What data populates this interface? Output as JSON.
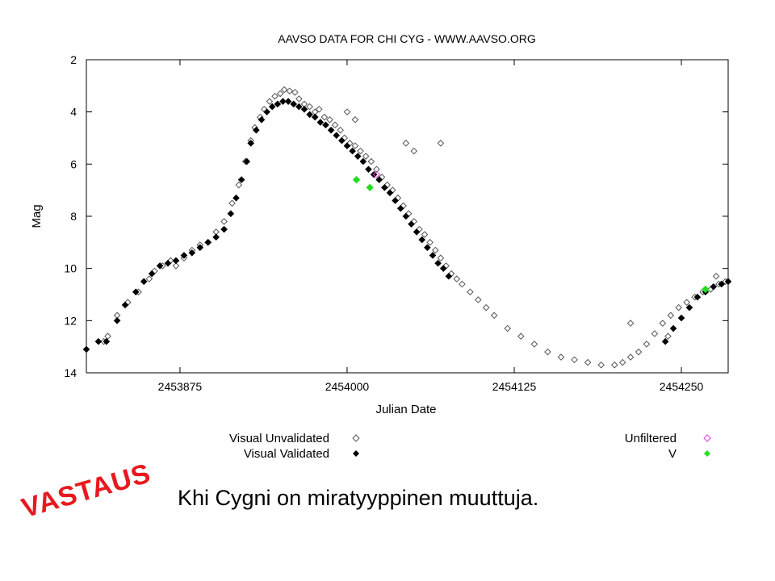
{
  "chart_data": {
    "type": "scatter",
    "title": "AAVSO DATA FOR CHI CYG - WWW.AAVSO.ORG",
    "xlabel": "Julian Date",
    "ylabel": "Mag",
    "xlim": [
      2453805,
      2454285
    ],
    "ylim": [
      14,
      2
    ],
    "y_inverted": true,
    "x_ticks": [
      2453875,
      2454000,
      2454125,
      2454250
    ],
    "y_ticks": [
      2,
      4,
      6,
      8,
      10,
      12,
      14
    ],
    "grid": false,
    "legend": "below",
    "series": [
      {
        "name": "Visual Unvalidated",
        "marker": "open-diamond",
        "color": "#555555",
        "points": [
          [
            2453818,
            12.8
          ],
          [
            2453821,
            12.6
          ],
          [
            2453828,
            11.8
          ],
          [
            2453836,
            11.3
          ],
          [
            2453844,
            10.9
          ],
          [
            2453852,
            10.4
          ],
          [
            2453856,
            10.1
          ],
          [
            2453862,
            9.9
          ],
          [
            2453868,
            9.7
          ],
          [
            2453872,
            9.9
          ],
          [
            2453878,
            9.6
          ],
          [
            2453884,
            9.3
          ],
          [
            2453890,
            9.1
          ],
          [
            2453896,
            9.0
          ],
          [
            2453902,
            8.6
          ],
          [
            2453908,
            8.2
          ],
          [
            2453914,
            7.5
          ],
          [
            2453919,
            6.8
          ],
          [
            2453924,
            5.9
          ],
          [
            2453928,
            5.1
          ],
          [
            2453931,
            4.6
          ],
          [
            2453935,
            4.2
          ],
          [
            2453938,
            3.9
          ],
          [
            2453942,
            3.6
          ],
          [
            2453946,
            3.4
          ],
          [
            2453950,
            3.3
          ],
          [
            2453953,
            3.15
          ],
          [
            2453957,
            3.2
          ],
          [
            2453961,
            3.25
          ],
          [
            2453964,
            3.5
          ],
          [
            2453968,
            3.7
          ],
          [
            2453972,
            3.8
          ],
          [
            2453976,
            4.0
          ],
          [
            2453979,
            3.9
          ],
          [
            2453983,
            4.2
          ],
          [
            2453987,
            4.3
          ],
          [
            2453991,
            4.5
          ],
          [
            2453995,
            4.7
          ],
          [
            2453998,
            5.0
          ],
          [
            2454002,
            5.2
          ],
          [
            2454006,
            5.3
          ],
          [
            2454010,
            5.5
          ],
          [
            2454014,
            5.7
          ],
          [
            2454018,
            5.9
          ],
          [
            2454022,
            6.2
          ],
          [
            2454026,
            6.5
          ],
          [
            2454030,
            6.8
          ],
          [
            2454034,
            7.0
          ],
          [
            2454038,
            7.3
          ],
          [
            2454042,
            7.6
          ],
          [
            2454046,
            7.9
          ],
          [
            2454050,
            8.2
          ],
          [
            2454054,
            8.5
          ],
          [
            2454058,
            8.7
          ],
          [
            2454062,
            9.0
          ],
          [
            2454066,
            9.3
          ],
          [
            2454070,
            9.6
          ],
          [
            2454074,
            9.9
          ],
          [
            2454078,
            10.2
          ],
          [
            2454082,
            10.4
          ],
          [
            2454086,
            10.6
          ],
          [
            2454092,
            10.9
          ],
          [
            2454098,
            11.2
          ],
          [
            2454104,
            11.5
          ],
          [
            2454110,
            11.8
          ],
          [
            2454120,
            12.3
          ],
          [
            2454130,
            12.6
          ],
          [
            2454140,
            12.9
          ],
          [
            2454150,
            13.2
          ],
          [
            2454160,
            13.4
          ],
          [
            2454170,
            13.5
          ],
          [
            2454180,
            13.6
          ],
          [
            2454190,
            13.7
          ],
          [
            2454200,
            13.7
          ],
          [
            2454206,
            13.6
          ],
          [
            2454212,
            13.4
          ],
          [
            2454218,
            13.2
          ],
          [
            2454224,
            12.9
          ],
          [
            2454230,
            12.5
          ],
          [
            2454236,
            12.1
          ],
          [
            2454242,
            11.8
          ],
          [
            2454248,
            11.5
          ],
          [
            2454254,
            11.3
          ],
          [
            2454260,
            11.1
          ],
          [
            2454266,
            10.9
          ],
          [
            2454272,
            10.8
          ],
          [
            2454278,
            10.6
          ],
          [
            2454283,
            10.5
          ],
          [
            2454070,
            5.2
          ],
          [
            2454050,
            5.5
          ],
          [
            2454044,
            5.2
          ],
          [
            2454000,
            4.0
          ],
          [
            2454006,
            4.3
          ],
          [
            2454212,
            12.1
          ],
          [
            2454276,
            10.3
          ],
          [
            2454240,
            12.6
          ]
        ]
      },
      {
        "name": "Visual Validated",
        "marker": "filled-diamond",
        "color": "#000000",
        "points": [
          [
            2453805,
            13.1
          ],
          [
            2453814,
            12.8
          ],
          [
            2453820,
            12.8
          ],
          [
            2453828,
            12.0
          ],
          [
            2453834,
            11.4
          ],
          [
            2453842,
            10.9
          ],
          [
            2453848,
            10.5
          ],
          [
            2453854,
            10.2
          ],
          [
            2453860,
            9.9
          ],
          [
            2453866,
            9.8
          ],
          [
            2453872,
            9.7
          ],
          [
            2453878,
            9.5
          ],
          [
            2453884,
            9.4
          ],
          [
            2453890,
            9.2
          ],
          [
            2453896,
            9.0
          ],
          [
            2453902,
            8.8
          ],
          [
            2453908,
            8.5
          ],
          [
            2453913,
            7.9
          ],
          [
            2453917,
            7.3
          ],
          [
            2453921,
            6.6
          ],
          [
            2453925,
            5.9
          ],
          [
            2453928,
            5.2
          ],
          [
            2453932,
            4.7
          ],
          [
            2453936,
            4.3
          ],
          [
            2453940,
            4.0
          ],
          [
            2453944,
            3.8
          ],
          [
            2453948,
            3.7
          ],
          [
            2453952,
            3.6
          ],
          [
            2453956,
            3.6
          ],
          [
            2453960,
            3.7
          ],
          [
            2453964,
            3.8
          ],
          [
            2453968,
            3.9
          ],
          [
            2453972,
            4.1
          ],
          [
            2453976,
            4.2
          ],
          [
            2453980,
            4.4
          ],
          [
            2453984,
            4.5
          ],
          [
            2453988,
            4.7
          ],
          [
            2453992,
            4.9
          ],
          [
            2453996,
            5.1
          ],
          [
            2454000,
            5.3
          ],
          [
            2454004,
            5.5
          ],
          [
            2454008,
            5.7
          ],
          [
            2454012,
            5.9
          ],
          [
            2454016,
            6.2
          ],
          [
            2454020,
            6.4
          ],
          [
            2454024,
            6.6
          ],
          [
            2454028,
            6.9
          ],
          [
            2454032,
            7.1
          ],
          [
            2454036,
            7.4
          ],
          [
            2454040,
            7.7
          ],
          [
            2454044,
            8.0
          ],
          [
            2454048,
            8.3
          ],
          [
            2454052,
            8.6
          ],
          [
            2454056,
            8.9
          ],
          [
            2454060,
            9.2
          ],
          [
            2454064,
            9.5
          ],
          [
            2454068,
            9.8
          ],
          [
            2454072,
            10.0
          ],
          [
            2454076,
            10.3
          ],
          [
            2454238,
            12.8
          ],
          [
            2454244,
            12.3
          ],
          [
            2454250,
            11.9
          ],
          [
            2454256,
            11.5
          ],
          [
            2454262,
            11.1
          ],
          [
            2454268,
            10.9
          ],
          [
            2454274,
            10.7
          ],
          [
            2454280,
            10.6
          ],
          [
            2454285,
            10.5
          ]
        ]
      },
      {
        "name": "Unfiltered",
        "marker": "open-diamond",
        "color": "#e03ce0",
        "points": [
          [
            2454022,
            6.4
          ]
        ]
      },
      {
        "name": "V",
        "marker": "filled-diamond",
        "color": "#22dd22",
        "points": [
          [
            2454007,
            6.6
          ],
          [
            2454017,
            6.9
          ],
          [
            2454268,
            10.8
          ]
        ]
      }
    ]
  },
  "caption": "Khi Cygni on miratyyppinen muuttuja.",
  "stamp": "VASTAUS"
}
